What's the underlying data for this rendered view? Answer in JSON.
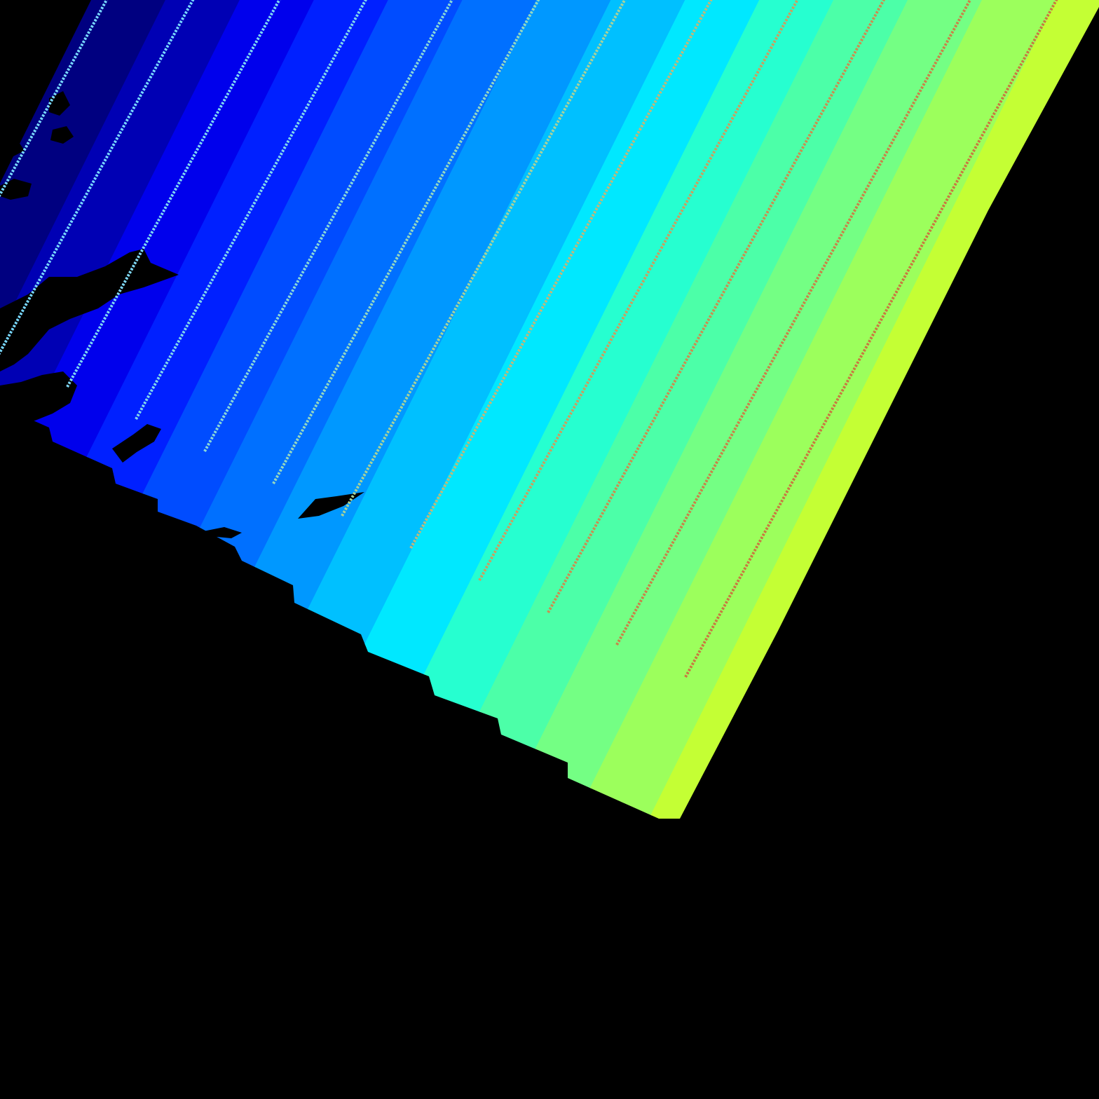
{
  "map": {
    "kind": "gridded-field-swath",
    "colormap": "jet",
    "background_color": "#000000",
    "band_colors": [
      "#000080",
      "#0000b4",
      "#0000ec",
      "#0020ff",
      "#004cff",
      "#0070ff",
      "#0098ff",
      "#00c0ff",
      "#00e8ff",
      "#26ffd0",
      "#4cffa8",
      "#74ff84",
      "#9cff5c",
      "#c4ff34",
      "#ecff0c",
      "#ffe000",
      "#ffb800",
      "#ff9000",
      "#ff6800",
      "#ff3c00",
      "#ec1400",
      "#d00000"
    ],
    "land_mask_color": "#000000",
    "track_count": 16,
    "highlighted_track_color": "#c00000"
  }
}
